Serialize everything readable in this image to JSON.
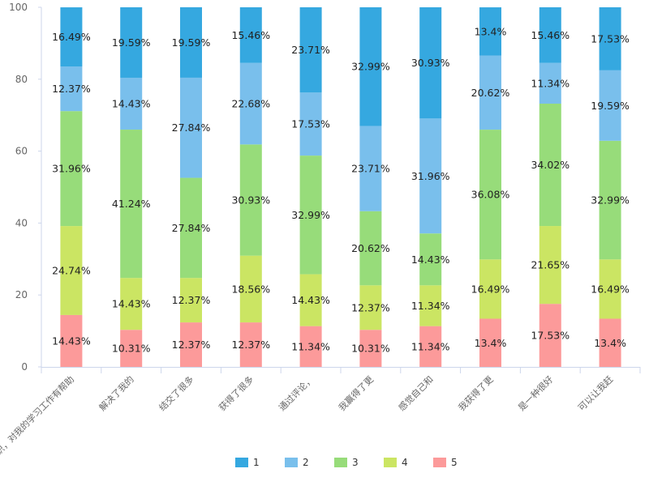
{
  "chart_data": {
    "type": "bar",
    "stacked": true,
    "percent": true,
    "categories": [
      "拓展了知识，对我的学习工作有帮助",
      "解决了我的",
      "结交了很多",
      "获得了很多",
      "通过评论，",
      "我赢得了更",
      "感觉自己和",
      "我获得了更",
      "是一种很好",
      "可以让我赶"
    ],
    "series": [
      {
        "name": "5",
        "color": "#fc9a9a",
        "values": [
          14.43,
          10.31,
          12.37,
          12.37,
          11.34,
          10.31,
          11.34,
          13.4,
          17.53,
          13.4
        ],
        "labels": [
          "14.43%",
          "10.31%",
          "12.37%",
          "12.37%",
          "11.34%",
          "10.31%",
          "11.34%",
          "13.4%",
          "17.53%",
          "13.4%"
        ]
      },
      {
        "name": "4",
        "color": "#cbe563",
        "values": [
          24.74,
          14.43,
          12.37,
          18.56,
          14.43,
          12.37,
          11.34,
          16.49,
          21.65,
          16.49
        ],
        "labels": [
          "24.74%",
          "14.43%",
          "12.37%",
          "18.56%",
          "14.43%",
          "12.37%",
          "11.34%",
          "16.49%",
          "21.65%",
          "16.49%"
        ]
      },
      {
        "name": "3",
        "color": "#97dc7a",
        "values": [
          31.96,
          41.24,
          27.84,
          30.93,
          32.99,
          20.62,
          14.43,
          36.08,
          34.02,
          32.99
        ],
        "labels": [
          "31.96%",
          "41.24%",
          "27.84%",
          "30.93%",
          "32.99%",
          "20.62%",
          "14.43%",
          "36.08%",
          "34.02%",
          "32.99%"
        ]
      },
      {
        "name": "2",
        "color": "#79bfec",
        "values": [
          12.37,
          14.43,
          27.84,
          22.68,
          17.53,
          23.71,
          31.96,
          20.62,
          11.34,
          19.59
        ],
        "labels": [
          "12.37%",
          "14.43%",
          "27.84%",
          "22.68%",
          "17.53%",
          "23.71%",
          "31.96%",
          "20.62%",
          "11.34%",
          "19.59%"
        ]
      },
      {
        "name": "1",
        "color": "#35a8e0",
        "values": [
          16.49,
          19.59,
          19.59,
          15.46,
          23.71,
          32.99,
          30.93,
          13.4,
          15.46,
          17.53
        ],
        "labels": [
          "16.49%",
          "19.59%",
          "19.59%",
          "15.46%",
          "23.71%",
          "32.99%",
          "30.93%",
          "13.4%",
          "15.46%",
          "17.53%"
        ]
      }
    ],
    "legend_order": [
      "1",
      "2",
      "3",
      "4",
      "5"
    ],
    "ylim": [
      0,
      100
    ],
    "yticks": [
      0,
      20,
      40,
      60,
      80,
      100
    ],
    "grid": false,
    "legend_position": "bottom"
  }
}
